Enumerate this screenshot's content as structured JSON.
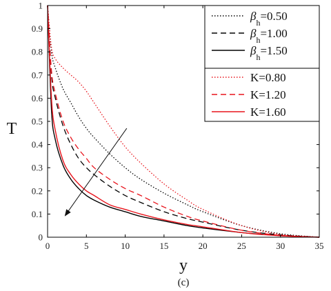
{
  "chart_data": {
    "type": "line",
    "xlabel": "y",
    "ylabel": "T",
    "caption": "(c)",
    "xlim": [
      0,
      35
    ],
    "ylim": [
      0,
      1
    ],
    "xticks": [
      "0",
      "5",
      "10",
      "15",
      "20",
      "25",
      "30",
      "35"
    ],
    "yticks": [
      "0",
      "0.1",
      "0.2",
      "0.3",
      "0.4",
      "0.5",
      "0.6",
      "0.7",
      "0.8",
      "0.9",
      "1"
    ],
    "grid": false,
    "legend_position": "top-right",
    "legend": [
      {
        "symbol": "β",
        "sub": "h",
        "value": "=0.50",
        "color": "#000000",
        "dash": "dotted"
      },
      {
        "symbol": "β",
        "sub": "h",
        "value": "=1.00",
        "color": "#000000",
        "dash": "dashed"
      },
      {
        "symbol": "β",
        "sub": "h",
        "value": "=1.50",
        "color": "#000000",
        "dash": "solid"
      },
      {
        "text": "K=0.80",
        "color": "#e8141c",
        "dash": "dotted"
      },
      {
        "text": "K=1.20",
        "color": "#e8141c",
        "dash": "dashed"
      },
      {
        "text": "K=1.60",
        "color": "#e8141c",
        "dash": "solid"
      }
    ],
    "series": [
      {
        "color": "#000000",
        "dash": "dotted",
        "x": [
          0,
          0.5,
          1,
          2,
          3,
          4,
          5,
          6,
          8,
          10,
          12,
          15,
          18,
          20,
          25,
          30,
          35
        ],
        "y": [
          1,
          0.8,
          0.73,
          0.64,
          0.58,
          0.52,
          0.47,
          0.43,
          0.36,
          0.3,
          0.25,
          0.19,
          0.14,
          0.11,
          0.05,
          0.015,
          0
        ]
      },
      {
        "color": "#000000",
        "dash": "dashed",
        "x": [
          0,
          0.5,
          1,
          2,
          3,
          4,
          5,
          6,
          8,
          10,
          12,
          15,
          18,
          20,
          25,
          30,
          35
        ],
        "y": [
          1,
          0.7,
          0.6,
          0.48,
          0.4,
          0.34,
          0.3,
          0.27,
          0.22,
          0.18,
          0.15,
          0.11,
          0.08,
          0.065,
          0.03,
          0.01,
          0
        ]
      },
      {
        "color": "#000000",
        "dash": "solid",
        "x": [
          0,
          0.5,
          1,
          2,
          3,
          4,
          5,
          6,
          8,
          10,
          12,
          15,
          18,
          20,
          25,
          30,
          35
        ],
        "y": [
          1,
          0.55,
          0.42,
          0.31,
          0.25,
          0.21,
          0.18,
          0.16,
          0.13,
          0.11,
          0.09,
          0.07,
          0.05,
          0.04,
          0.02,
          0.007,
          0
        ]
      },
      {
        "color": "#e8141c",
        "dash": "dotted",
        "x": [
          0,
          0.5,
          1,
          2,
          3,
          4,
          5,
          6,
          8,
          10,
          12,
          15,
          18,
          20,
          25,
          30,
          35
        ],
        "y": [
          1,
          0.82,
          0.77,
          0.73,
          0.7,
          0.67,
          0.63,
          0.58,
          0.48,
          0.39,
          0.32,
          0.23,
          0.16,
          0.12,
          0.05,
          0.012,
          0
        ]
      },
      {
        "color": "#e8141c",
        "dash": "dashed",
        "x": [
          0,
          0.5,
          1,
          2,
          3,
          4,
          5,
          6,
          8,
          10,
          12,
          15,
          18,
          20,
          25,
          30,
          35
        ],
        "y": [
          1,
          0.72,
          0.62,
          0.5,
          0.43,
          0.38,
          0.34,
          0.3,
          0.25,
          0.21,
          0.18,
          0.13,
          0.09,
          0.07,
          0.03,
          0.008,
          0
        ]
      },
      {
        "color": "#e8141c",
        "dash": "solid",
        "x": [
          0,
          0.5,
          1,
          2,
          3,
          4,
          5,
          6,
          8,
          10,
          12,
          15,
          18,
          20,
          25,
          30,
          35
        ],
        "y": [
          1,
          0.6,
          0.46,
          0.33,
          0.27,
          0.23,
          0.2,
          0.18,
          0.14,
          0.12,
          0.1,
          0.075,
          0.055,
          0.045,
          0.02,
          0.006,
          0
        ]
      }
    ],
    "annotation_arrow": {
      "from": [
        10.2,
        0.47
      ],
      "to": [
        2.3,
        0.095
      ]
    }
  }
}
